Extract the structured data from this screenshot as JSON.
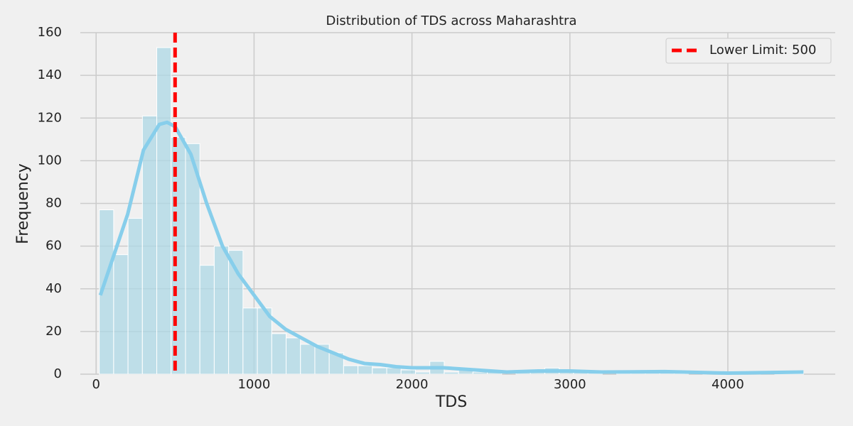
{
  "chart_data": {
    "type": "histogram",
    "title": "Distribution of TDS across Maharashtra",
    "x_label": "TDS",
    "y_label": "Frequency",
    "bins": [
      20,
      111,
      202,
      293,
      384,
      475,
      566,
      657,
      748,
      839,
      930,
      1021,
      1112,
      1203,
      1294,
      1385,
      1476,
      1567,
      1658,
      1749,
      1840,
      1931,
      2022,
      2113,
      2204,
      2295,
      2386,
      2477,
      2568,
      2659,
      2750,
      2841,
      2932,
      3023,
      3114,
      3205,
      3296,
      3387,
      3478,
      3569,
      3660,
      3751,
      3842,
      3933,
      4024,
      4115,
      4206,
      4297,
      4388,
      4479
    ],
    "values": [
      77,
      56,
      73,
      121,
      153,
      111,
      108,
      51,
      60,
      58,
      31,
      31,
      19,
      17,
      14,
      14,
      10,
      4,
      4,
      3,
      3,
      2,
      1,
      6,
      1,
      2,
      1,
      1,
      0,
      1,
      1,
      3,
      1,
      1,
      1,
      0,
      1,
      1,
      1,
      1,
      1,
      0,
      1,
      0,
      0,
      1,
      0,
      1,
      1
    ],
    "color": "#add8e6",
    "kde": {
      "color": "#87ceeb",
      "x": [
        27,
        200,
        300,
        400,
        450,
        500,
        600,
        700,
        800,
        900,
        1000,
        1100,
        1200,
        1300,
        1400,
        1500,
        1600,
        1700,
        1800,
        1900,
        2000,
        2200,
        2400,
        2600,
        2800,
        3000,
        3200,
        3600,
        4000,
        4479
      ],
      "values": [
        37,
        75,
        105,
        117,
        118,
        116,
        103,
        80,
        60,
        47,
        37,
        27,
        21,
        17,
        13,
        10,
        7,
        5,
        4.5,
        3.5,
        3,
        3,
        2,
        1,
        1.5,
        1.5,
        1,
        1.2,
        0.5,
        1
      ]
    },
    "vline": {
      "x": 500,
      "label": "Lower Limit: 500",
      "color": "#ff0000"
    },
    "xlim": [
      -100,
      4680
    ],
    "xticks": [
      0,
      1000,
      2000,
      3000,
      4000
    ],
    "ylim": [
      0,
      160
    ],
    "yticks": [
      0,
      20,
      40,
      60,
      80,
      100,
      120,
      140,
      160
    ],
    "grid": true,
    "legend": "upper right"
  }
}
